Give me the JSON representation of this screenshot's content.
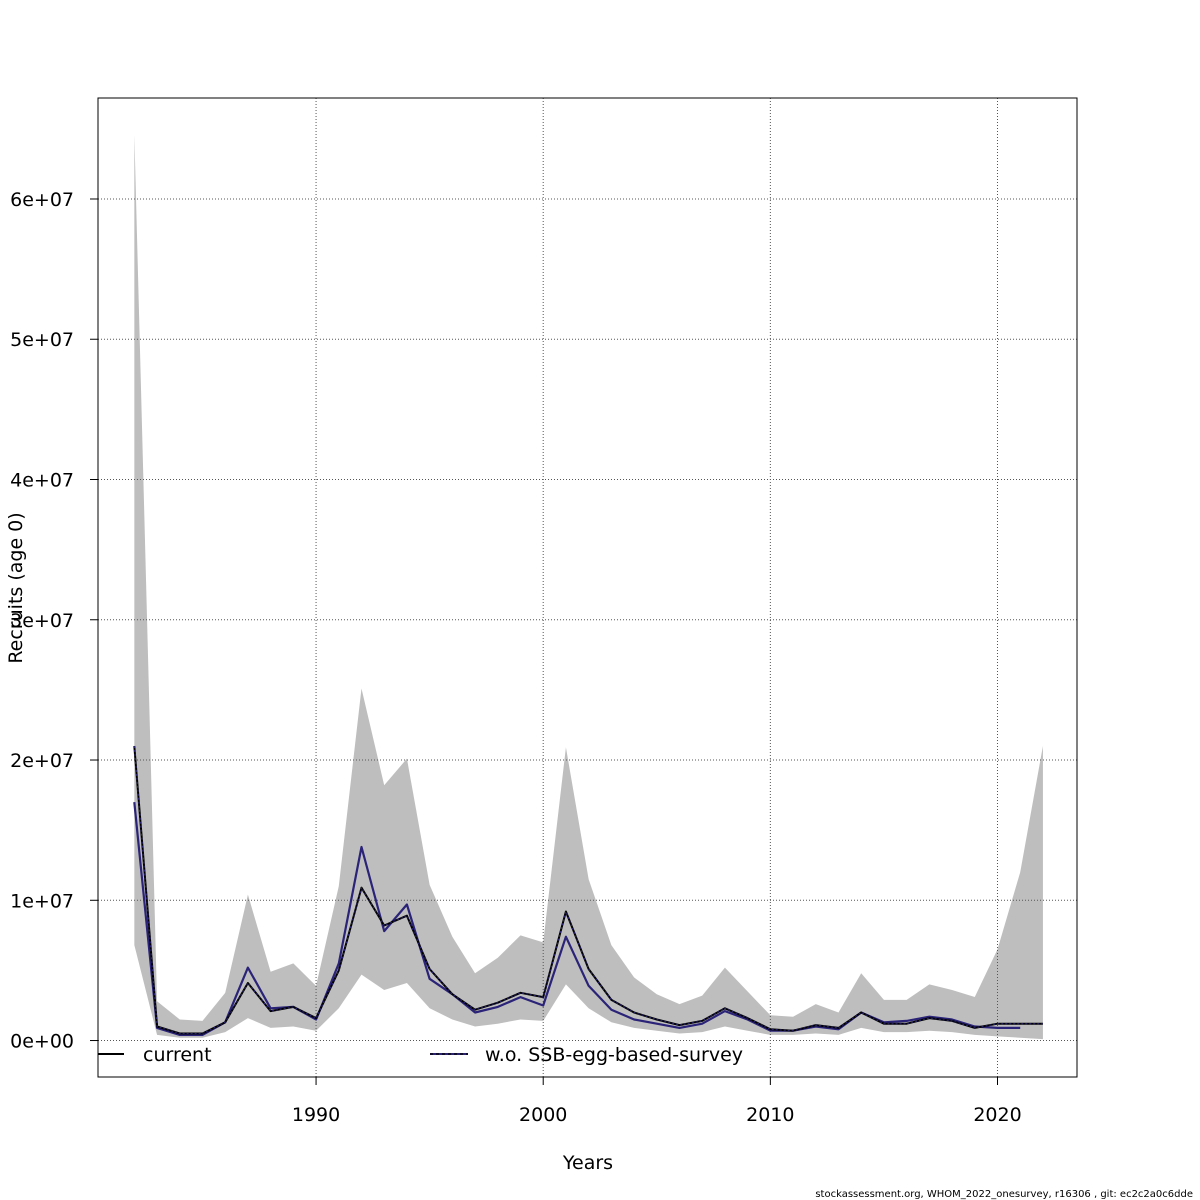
{
  "chart_data": {
    "type": "line",
    "xlabel": "Years",
    "ylabel": "Recruits (age 0)",
    "xlim": [
      1980.4,
      2023.5
    ],
    "ylim": [
      -2600000,
      67200000
    ],
    "x_ticks": [
      1990,
      2000,
      2010,
      2020
    ],
    "y_ticks": [
      0,
      10000000,
      20000000,
      30000000,
      40000000,
      50000000,
      60000000
    ],
    "y_tick_labels": [
      "0e+00",
      "1e+07",
      "2e+07",
      "3e+07",
      "4e+07",
      "5e+07",
      "6e+07"
    ],
    "grid": true,
    "legend_position": "bottom",
    "x": [
      1982,
      1983,
      1984,
      1985,
      1986,
      1987,
      1988,
      1989,
      1990,
      1991,
      1992,
      1993,
      1994,
      1995,
      1996,
      1997,
      1998,
      1999,
      2000,
      2001,
      2002,
      2003,
      2004,
      2005,
      2006,
      2007,
      2008,
      2009,
      2010,
      2011,
      2012,
      2013,
      2014,
      2015,
      2016,
      2017,
      2018,
      2019,
      2020,
      2021,
      2022
    ],
    "band": {
      "upper": [
        64600000,
        2800000,
        1500000,
        1400000,
        3400000,
        10400000,
        4900000,
        5500000,
        3900000,
        11000000,
        25100000,
        18200000,
        20100000,
        11100000,
        7400000,
        4800000,
        5900000,
        7500000,
        7000000,
        20900000,
        11500000,
        6800000,
        4500000,
        3300000,
        2600000,
        3200000,
        5200000,
        3500000,
        1800000,
        1700000,
        2600000,
        2000000,
        4800000,
        2900000,
        2900000,
        4000000,
        3600000,
        3100000,
        6500000,
        12000000,
        21000000
      ],
      "lower": [
        6800000,
        400000,
        200000,
        200000,
        600000,
        1600000,
        900000,
        1000000,
        700000,
        2300000,
        4700000,
        3600000,
        4100000,
        2300000,
        1500000,
        1000000,
        1200000,
        1500000,
        1400000,
        4000000,
        2300000,
        1300000,
        900000,
        700000,
        500000,
        600000,
        1000000,
        700000,
        400000,
        400000,
        500000,
        400000,
        900000,
        600000,
        600000,
        700000,
        600000,
        400000,
        300000,
        200000,
        100000
      ]
    },
    "series": [
      {
        "name": "current",
        "values": [
          21000000,
          1000000,
          500000,
          500000,
          1300000,
          4100000,
          2100000,
          2400000,
          1600000,
          5000000,
          10900000,
          8200000,
          8900000,
          5100000,
          3300000,
          2200000,
          2700000,
          3400000,
          3100000,
          9200000,
          5100000,
          2900000,
          2000000,
          1500000,
          1100000,
          1400000,
          2300000,
          1600000,
          800000,
          700000,
          1100000,
          900000,
          2000000,
          1200000,
          1200000,
          1600000,
          1400000,
          900000,
          1200000,
          1200000,
          1200000
        ]
      },
      {
        "name": "w.o. SSB-egg-based-survey",
        "values": [
          17000000,
          900000,
          400000,
          400000,
          1300000,
          5200000,
          2300000,
          2400000,
          1500000,
          5500000,
          13800000,
          7800000,
          9700000,
          4400000,
          3300000,
          2000000,
          2400000,
          3100000,
          2500000,
          7400000,
          3900000,
          2200000,
          1500000,
          1200000,
          900000,
          1200000,
          2100000,
          1500000,
          700000,
          700000,
          1000000,
          800000,
          2000000,
          1300000,
          1400000,
          1700000,
          1500000,
          1000000,
          900000,
          900000,
          null
        ]
      }
    ]
  },
  "colors": {
    "band": "#bebebe",
    "current": "#000000",
    "alternative": "#2a2378",
    "grid": "#555555"
  },
  "legend": {
    "current_label": "current",
    "alt_label": "w.o. SSB-egg-based-survey"
  },
  "footer": "stockassessment.org, WHOM_2022_onesurvey, r16306 , git: ec2c2a0c6dde"
}
